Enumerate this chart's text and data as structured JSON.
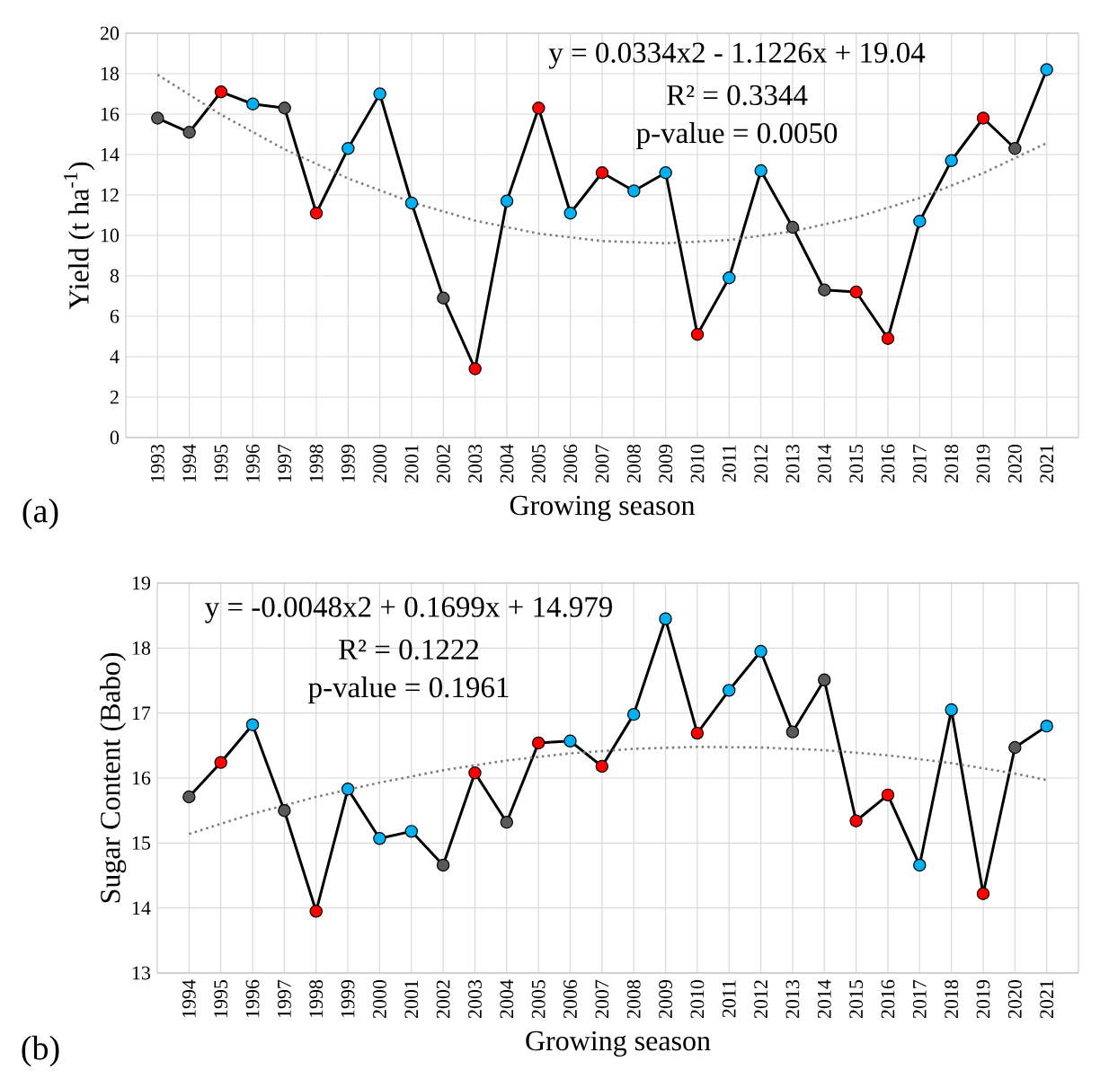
{
  "chart_data": [
    {
      "type": "line",
      "xlabel": "Growing season",
      "ylabel": "Yield (t ha$^{-1}$)",
      "x": [
        1993,
        1994,
        1995,
        1996,
        1997,
        1998,
        1999,
        2000,
        2001,
        2002,
        2003,
        2004,
        2005,
        2006,
        2007,
        2008,
        2009,
        2010,
        2011,
        2012,
        2013,
        2014,
        2015,
        2016,
        2017,
        2018,
        2019,
        2020,
        2021
      ],
      "xlim": [
        1992,
        2022
      ],
      "xticks": [
        1993,
        1994,
        1995,
        1996,
        1997,
        1998,
        1999,
        2000,
        2001,
        2002,
        2003,
        2004,
        2005,
        2006,
        2007,
        2008,
        2009,
        2010,
        2011,
        2012,
        2013,
        2014,
        2015,
        2016,
        2017,
        2018,
        2019,
        2020,
        2021
      ],
      "ylim": [
        0,
        20
      ],
      "yticks": [
        0,
        2,
        4,
        6,
        8,
        10,
        12,
        14,
        16,
        18,
        20
      ],
      "grid": true,
      "marker": "circle",
      "line_style": "solid",
      "series": [
        {
          "color": "#000000",
          "values": [
            15.8,
            15.1,
            17.1,
            16.5,
            16.3,
            11.1,
            14.3,
            17.0,
            11.6,
            6.9,
            3.4,
            11.7,
            16.3,
            11.1,
            13.1,
            12.2,
            13.1,
            5.1,
            7.9,
            13.2,
            10.4,
            7.3,
            7.2,
            4.9,
            10.7,
            13.7,
            15.8,
            14.3,
            18.2
          ],
          "colors": [
            "#595959",
            "#595959",
            "#ff0000",
            "#00b0f0",
            "#595959",
            "#ff0000",
            "#00b0f0",
            "#00b0f0",
            "#00b0f0",
            "#595959",
            "#ff0000",
            "#00b0f0",
            "#ff0000",
            "#00b0f0",
            "#ff0000",
            "#00b0f0",
            "#00b0f0",
            "#ff0000",
            "#00b0f0",
            "#00b0f0",
            "#595959",
            "#595959",
            "#ff0000",
            "#ff0000",
            "#00b0f0",
            "#00b0f0",
            "#ff0000",
            "#595959",
            "#00b0f0"
          ]
        },
        {
          "type": "line",
          "color": "#7f7f7f",
          "line_style": "dotted",
          "marker": "none",
          "x": [
            1993,
            1995,
            1997,
            1999,
            2001,
            2003,
            2005,
            2007,
            2009,
            2011,
            2013,
            2015,
            2017,
            2019,
            2021
          ],
          "values": [
            17.95,
            15.97,
            14.26,
            12.82,
            11.64,
            10.73,
            10.09,
            9.72,
            9.61,
            9.77,
            10.2,
            10.89,
            11.85,
            13.08,
            14.57
          ]
        }
      ],
      "annotations": [
        "y = 0.0334x2 - 1.1226x + 19.04",
        "R² = 0.3344",
        "p-value = 0.0050",
        "(a)"
      ]
    },
    {
      "type": "line",
      "xlabel": "Growing season",
      "ylabel": "Sugar Content (Babo)",
      "x": [
        1994,
        1995,
        1996,
        1997,
        1998,
        1999,
        2000,
        2001,
        2002,
        2003,
        2004,
        2005,
        2006,
        2007,
        2008,
        2009,
        2010,
        2011,
        2012,
        2013,
        2014,
        2015,
        2016,
        2017,
        2018,
        2019,
        2020,
        2021
      ],
      "xlim": [
        1993,
        2022
      ],
      "xticks": [
        1994,
        1995,
        1996,
        1997,
        1998,
        1999,
        2000,
        2001,
        2002,
        2003,
        2004,
        2005,
        2006,
        2007,
        2008,
        2009,
        2010,
        2011,
        2012,
        2013,
        2014,
        2015,
        2016,
        2017,
        2018,
        2019,
        2020,
        2021
      ],
      "ylim": [
        13,
        19
      ],
      "yticks": [
        13,
        14,
        15,
        16,
        17,
        18,
        19
      ],
      "grid": true,
      "marker": "circle",
      "line_style": "solid",
      "series": [
        {
          "color": "#000000",
          "values": [
            15.71,
            16.24,
            16.82,
            15.5,
            13.95,
            15.83,
            15.07,
            15.18,
            14.66,
            16.08,
            15.32,
            16.54,
            16.57,
            16.18,
            16.98,
            18.45,
            16.69,
            17.35,
            17.95,
            16.71,
            17.51,
            15.34,
            15.74,
            14.66,
            17.05,
            14.22,
            16.47,
            16.8
          ],
          "colors": [
            "#595959",
            "#ff0000",
            "#00b0f0",
            "#595959",
            "#ff0000",
            "#00b0f0",
            "#00b0f0",
            "#00b0f0",
            "#595959",
            "#ff0000",
            "#595959",
            "#ff0000",
            "#00b0f0",
            "#ff0000",
            "#00b0f0",
            "#00b0f0",
            "#ff0000",
            "#00b0f0",
            "#00b0f0",
            "#595959",
            "#595959",
            "#ff0000",
            "#ff0000",
            "#00b0f0",
            "#00b0f0",
            "#ff0000",
            "#595959",
            "#00b0f0"
          ]
        },
        {
          "type": "line",
          "color": "#7f7f7f",
          "line_style": "dotted",
          "marker": "none",
          "x": [
            1994,
            1996,
            1998,
            2000,
            2002,
            2004,
            2006,
            2008,
            2010,
            2012,
            2014,
            2016,
            2018,
            2020,
            2021
          ],
          "values": [
            15.14,
            15.45,
            15.71,
            15.93,
            16.12,
            16.27,
            16.38,
            16.45,
            16.48,
            16.47,
            16.43,
            16.35,
            16.23,
            16.07,
            15.97
          ]
        }
      ],
      "annotations": [
        "y = -0.0048x2 + 0.1699x + 14.979",
        "R² = 0.1222",
        "p-value =  0.1961",
        "(b)"
      ]
    }
  ]
}
